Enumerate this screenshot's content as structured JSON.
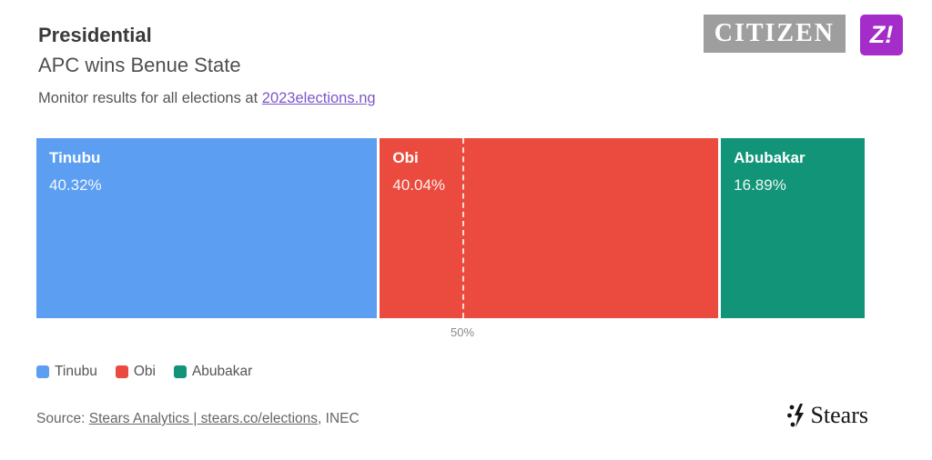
{
  "header": {
    "title": "Presidential",
    "subtitle": "APC wins Benue State",
    "monitor_prefix": "Monitor results for all elections at ",
    "monitor_link": "2023elections.ng"
  },
  "logos": {
    "citizen": "CITIZEN",
    "zikoko": "Z!"
  },
  "chart_data": {
    "type": "bar",
    "orientation": "horizontal-stacked",
    "title": "Presidential — APC wins Benue State",
    "categories": [
      "Tinubu",
      "Obi",
      "Abubakar"
    ],
    "values": [
      40.32,
      40.04,
      16.89
    ],
    "value_labels": [
      "40.32%",
      "40.04%",
      "16.89%"
    ],
    "colors": [
      "#5c9ef1",
      "#eb4b3e",
      "#129478"
    ],
    "xlabel": "",
    "ylabel": "",
    "xlim": [
      0,
      100
    ],
    "grid": false,
    "reference_line": {
      "value": 50,
      "label": "50%",
      "style": "white-dashed"
    },
    "legend": [
      "Tinubu",
      "Obi",
      "Abubakar"
    ],
    "legend_position": "bottom-left"
  },
  "footer": {
    "source_prefix": "Source: ",
    "source_link_1": "Stears Analytics",
    "source_separator": " | ",
    "source_link_2": "stears.co/elections",
    "source_suffix": ", INEC",
    "brand": "Stears"
  }
}
